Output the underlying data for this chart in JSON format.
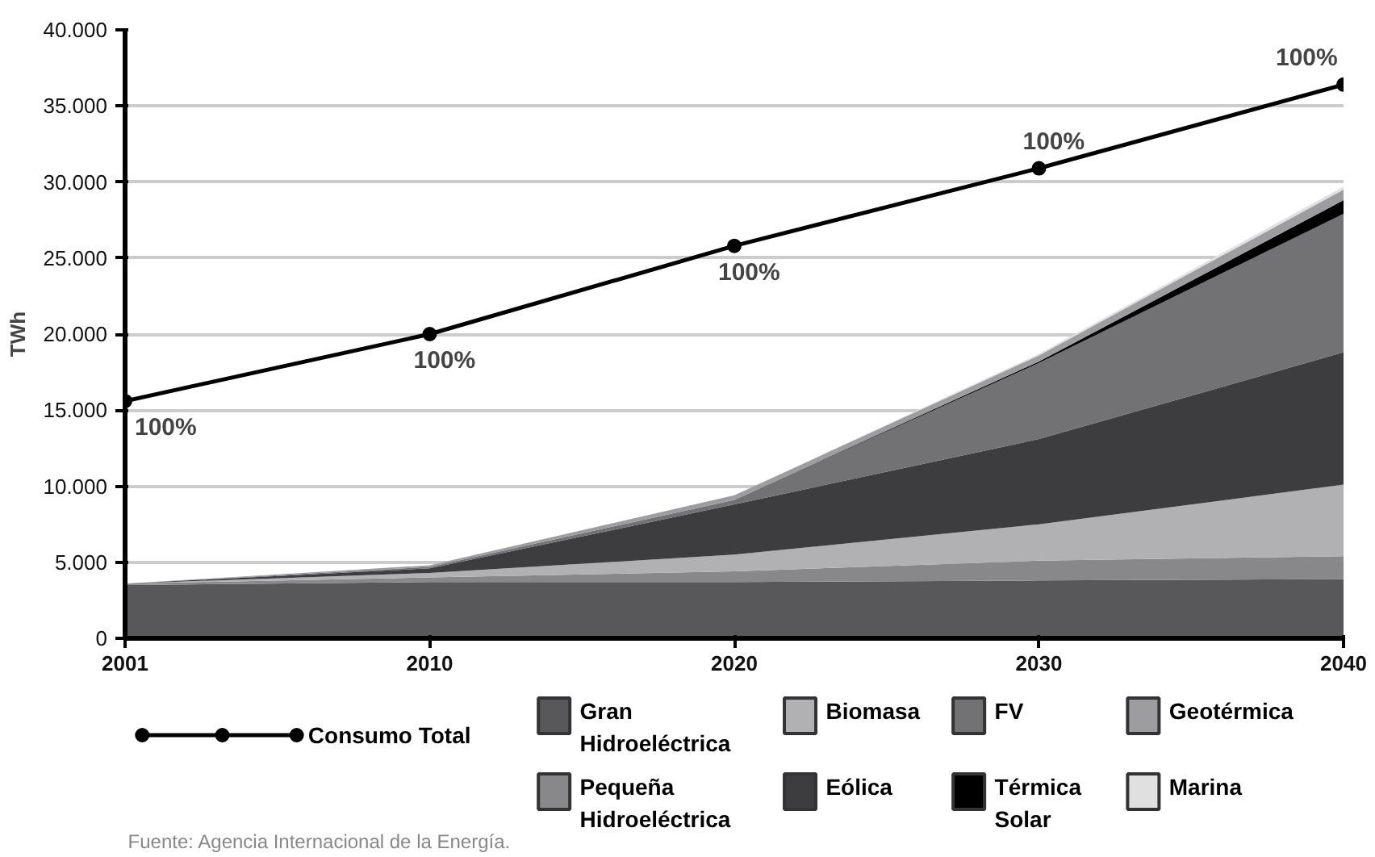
{
  "chart_data": {
    "type": "area",
    "stacked": true,
    "ylabel": "TWh",
    "categories": [
      "2001",
      "2010",
      "2020",
      "2030",
      "2040"
    ],
    "ylim": [
      0,
      40000
    ],
    "yticks": [
      {
        "value": 0,
        "label": "0"
      },
      {
        "value": 5000,
        "label": "5.000"
      },
      {
        "value": 10000,
        "label": "10.000"
      },
      {
        "value": 15000,
        "label": "15.000"
      },
      {
        "value": 20000,
        "label": "20.000"
      },
      {
        "value": 25000,
        "label": "25.000"
      },
      {
        "value": 30000,
        "label": "30.000"
      },
      {
        "value": 35000,
        "label": "35.000"
      },
      {
        "value": 40000,
        "label": "40.000"
      }
    ],
    "grid": "y",
    "legend": "bottom",
    "series": [
      {
        "name": "Gran Hidroeléctrica",
        "color": "#58585a",
        "values": [
          3500,
          3700,
          3700,
          3800,
          3900
        ]
      },
      {
        "name": "Pequeña Hidroeléctrica",
        "color": "#88888a",
        "values": [
          100,
          300,
          700,
          1300,
          1500
        ]
      },
      {
        "name": "Biomasa",
        "color": "#b1b1b3",
        "values": [
          0,
          300,
          1100,
          2400,
          4700
        ]
      },
      {
        "name": "Eólica",
        "color": "#3d3d3f",
        "values": [
          0,
          300,
          3300,
          5600,
          8700
        ]
      },
      {
        "name": "FV",
        "color": "#727274",
        "values": [
          0,
          100,
          300,
          5000,
          9100
        ]
      },
      {
        "name": "Térmica Solar",
        "color": "#000000",
        "values": [
          0,
          0,
          0,
          100,
          900
        ]
      },
      {
        "name": "Geotérmica",
        "color": "#9d9d9f",
        "values": [
          0,
          100,
          300,
          400,
          700
        ]
      },
      {
        "name": "Marina",
        "color": "#e0e0e0",
        "values": [
          0,
          0,
          0,
          100,
          200
        ]
      },
      {
        "name": "Consumo Total",
        "type": "line",
        "color": "#000000",
        "marker": "circle",
        "line_style": "solid",
        "values": [
          15600,
          20000,
          25800,
          30900,
          36400
        ]
      }
    ],
    "annotations": [
      {
        "text": "100%",
        "x": "2001",
        "y": 15600
      },
      {
        "text": "100%",
        "x": "2010",
        "y": 20000
      },
      {
        "text": "100%",
        "x": "2020",
        "y": 25800
      },
      {
        "text": "100%",
        "x": "2030",
        "y": 30900
      },
      {
        "text": "100%",
        "x": "2040",
        "y": 36400
      },
      "Fuente: Agencia Internacional de la Energía."
    ]
  }
}
